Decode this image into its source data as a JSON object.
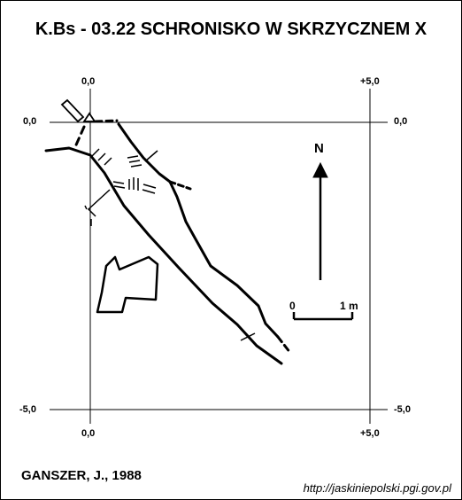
{
  "title": "K.Bs - 03.22 SCHRONISKO W SKRZYCZNEM X",
  "grid_labels": {
    "top_left_x": "0,0",
    "top_right_x": "+5,0",
    "left_top_y": "0,0",
    "right_top_y": "0,0",
    "left_bottom_y": "-5,0",
    "right_bottom_y": "-5,0",
    "bottom_left_x": "0,0",
    "bottom_right_x": "+5,0"
  },
  "north_label": "N",
  "scale": {
    "start": "0",
    "end": "1 m"
  },
  "author": "GANSZER, J., 1988",
  "url": "http://jaskiniepolski.pgi.gov.pl",
  "colors": {
    "ink": "#000000",
    "paper": "#ffffff"
  }
}
